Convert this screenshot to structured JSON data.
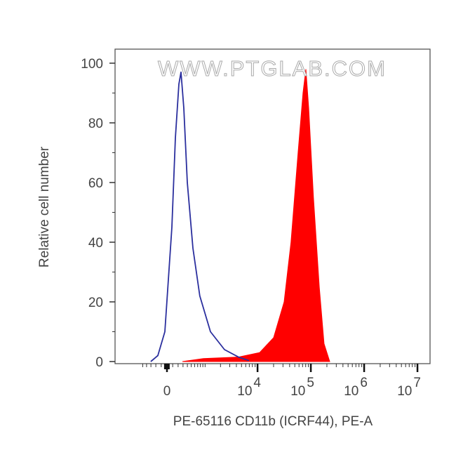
{
  "chart_data": {
    "type": "area",
    "title": "",
    "xlabel": "PE-65116 CD11b (ICRF44), PE-A",
    "ylabel": "Relative cell number",
    "x_scale": "biexponential",
    "xlim": [
      -600,
      10000000
    ],
    "ylim": [
      0,
      100
    ],
    "x_ticks": [
      {
        "value": 0,
        "base": "0",
        "exp": ""
      },
      {
        "value": 10000,
        "base": "10",
        "exp": "4"
      },
      {
        "value": 100000,
        "base": "10",
        "exp": "5"
      },
      {
        "value": 1000000,
        "base": "10",
        "exp": "6"
      },
      {
        "value": 10000000,
        "base": "10",
        "exp": "7"
      }
    ],
    "y_ticks": [
      "0",
      "20",
      "40",
      "60",
      "80",
      "100"
    ],
    "grid": false,
    "watermark": "WWW.PTGLAB.COM",
    "series": [
      {
        "style": "outline",
        "color": "#2b2f9e",
        "x": [
          -303,
          -162,
          -36,
          86,
          149,
          215,
          258,
          317,
          398,
          549,
          778,
          1280,
          2380,
          4380,
          6920
        ],
        "y": [
          0,
          2,
          10,
          45,
          75,
          93,
          97,
          85,
          60,
          38,
          22,
          10,
          4,
          1.5,
          0.3
        ]
      },
      {
        "style": "filled",
        "color": "#ff0000",
        "x": [
          287,
          924,
          4380,
          10900,
          20000,
          31500,
          42500,
          57600,
          71300,
          80700,
          91000,
          112000,
          144000,
          177000,
          226000
        ],
        "y": [
          0,
          1,
          1.5,
          3,
          8,
          20,
          40,
          70,
          90,
          98,
          85,
          55,
          25,
          6,
          0
        ]
      }
    ]
  }
}
